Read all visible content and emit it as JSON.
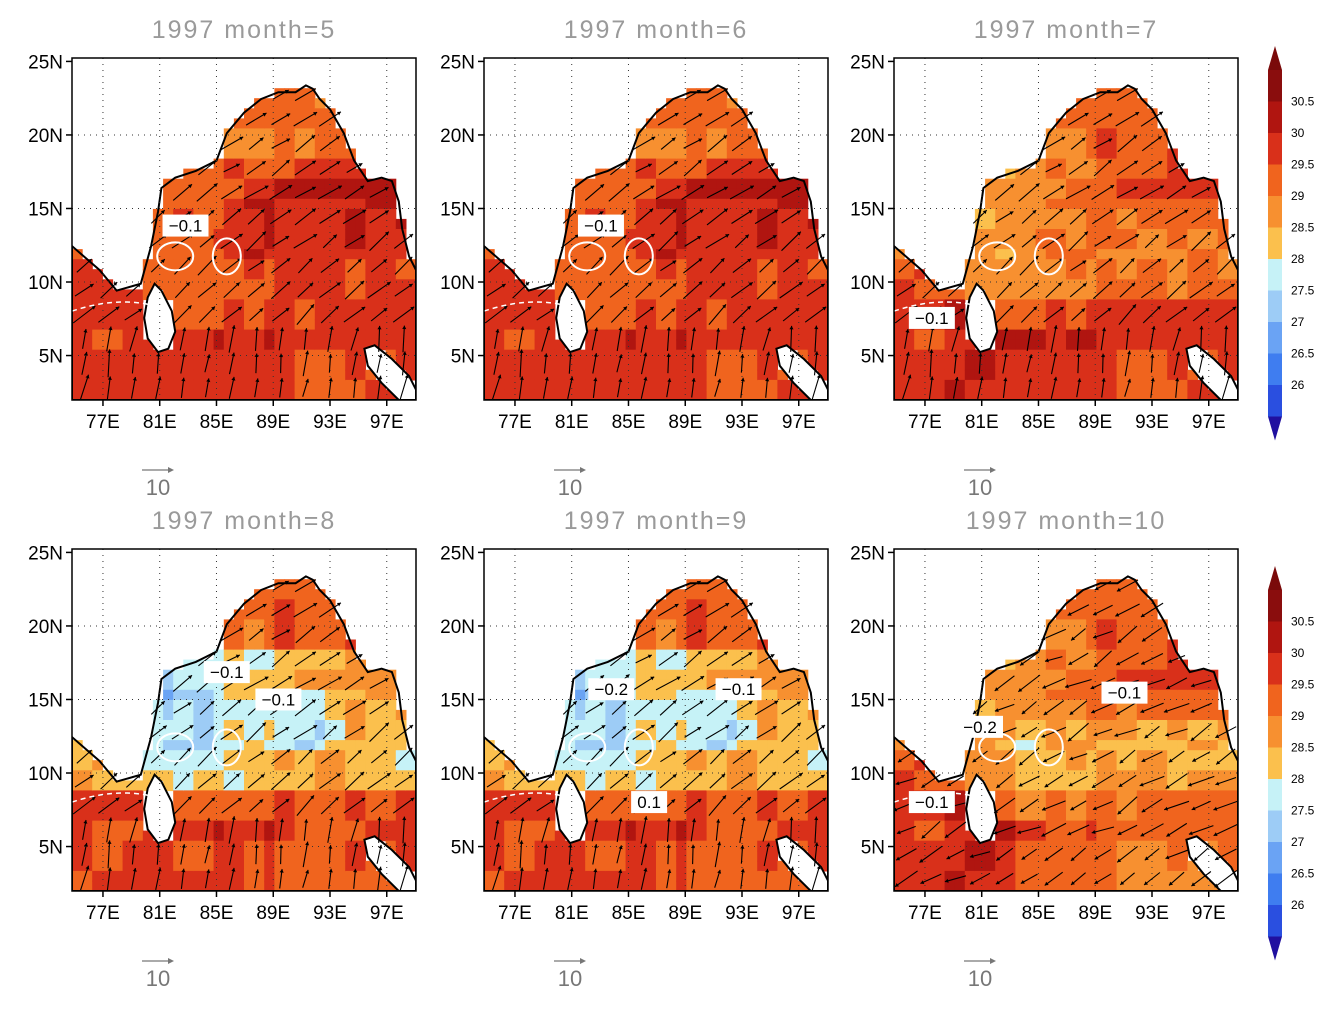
{
  "figure": {
    "panels": [
      {
        "title": "1997  month=5",
        "labels": [
          {
            "text": "−0.1",
            "fx": 0.33,
            "fy": 0.49
          }
        ],
        "palette": "warm",
        "shade": 0.0
      },
      {
        "title": "1997  month=6",
        "labels": [
          {
            "text": "−0.1",
            "fx": 0.34,
            "fy": 0.49
          }
        ],
        "palette": "warm",
        "shade": 0.1
      },
      {
        "title": "1997  month=7",
        "labels": [
          {
            "text": "−0.1",
            "fx": 0.11,
            "fy": 0.76
          }
        ],
        "palette": "mixed",
        "shade": 0.3
      },
      {
        "title": "1997  month=8",
        "labels": [
          {
            "text": "−0.1",
            "fx": 0.45,
            "fy": 0.36
          },
          {
            "text": "−0.1",
            "fx": 0.6,
            "fy": 0.44
          }
        ],
        "palette": "cool",
        "shade": 0.6
      },
      {
        "title": "1997  month=9",
        "labels": [
          {
            "text": "−0.2",
            "fx": 0.37,
            "fy": 0.41
          },
          {
            "text": "−0.1",
            "fx": 0.74,
            "fy": 0.41
          },
          {
            "text": "0.1",
            "fx": 0.48,
            "fy": 0.74
          }
        ],
        "palette": "cool",
        "shade": 0.7
      },
      {
        "title": "1997  month=10",
        "labels": [
          {
            "text": "−0.2",
            "fx": 0.25,
            "fy": 0.52
          },
          {
            "text": "−0.1",
            "fx": 0.11,
            "fy": 0.74
          },
          {
            "text": "−0.1",
            "fx": 0.67,
            "fy": 0.42
          }
        ],
        "palette": "mixed",
        "shade": 0.5
      }
    ],
    "lat_ticks": [
      "5N",
      "10N",
      "15N",
      "20N",
      "25N"
    ],
    "lon_ticks": [
      "77E",
      "81E",
      "85E",
      "89E",
      "93E",
      "97E"
    ],
    "vector_key_label": "10",
    "colorbar": {
      "labels": [
        "26",
        "26.5",
        "27",
        "27.5",
        "28",
        "28.5",
        "29",
        "29.5",
        "30",
        "30.5"
      ],
      "colors": [
        "#2a4fe0",
        "#3f7df0",
        "#6aa3f4",
        "#9dccf6",
        "#c6f2f7",
        "#fbc04d",
        "#f79030",
        "#f0641e",
        "#d9301a",
        "#b01510",
        "#8a0d0d"
      ],
      "under_color": "#2010a0",
      "over_color": "#7a0a0a"
    }
  }
}
